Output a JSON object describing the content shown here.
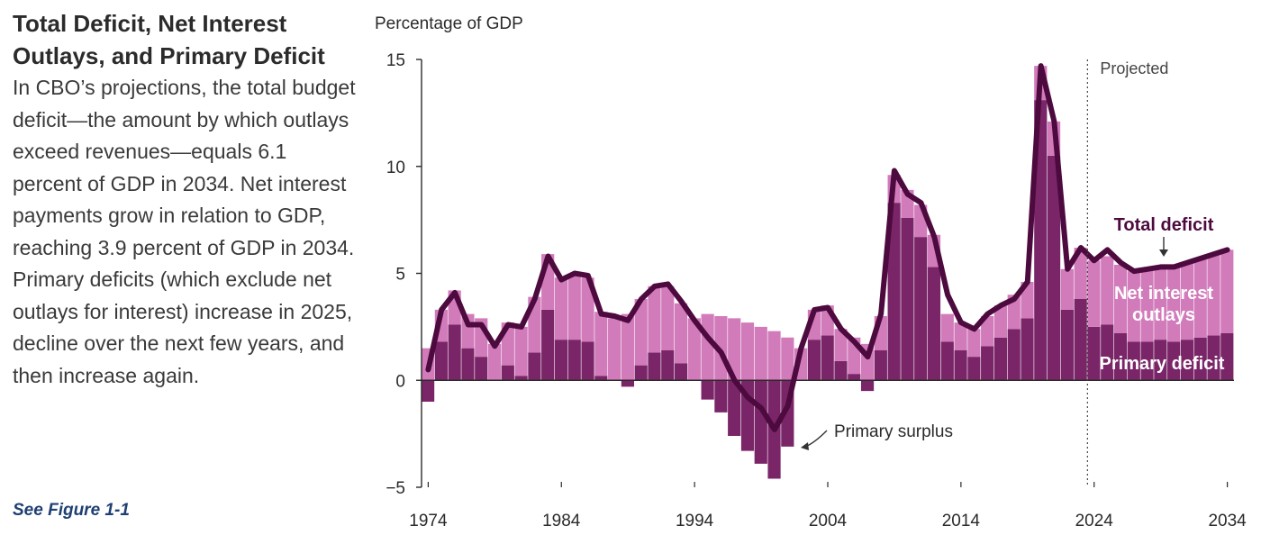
{
  "side": {
    "title": "Total Deficit, Net Interest Outlays, and Primary Deficit",
    "body": "In CBO’s projections, the total budget deficit—the amount by which outlays exceed revenues—equals 6.1 percent of GDP in 2034. Net interest payments grow in relation to GDP, reaching 3.9 percent of GDP in 2034. Primary deficits (which exclude net outlays for interest) increase in 2025, decline over the next few years, and then increase again.",
    "link": "See Figure 1-1"
  },
  "colors": {
    "primary": "#7a2568",
    "net_interest": "#d27bbb",
    "total_line": "#4d0a3e",
    "axis": "#2b2b2b",
    "link": "#1f3f72"
  },
  "chart_data": {
    "type": "bar",
    "ylabel": "Percentage of GDP",
    "ylim": [
      -5,
      15
    ],
    "yticks": [
      -5,
      0,
      5,
      10,
      15
    ],
    "xticks": [
      1974,
      1984,
      1994,
      2004,
      2014,
      2024,
      2034
    ],
    "projection_start": 2024,
    "x": [
      1974,
      1975,
      1976,
      1977,
      1978,
      1979,
      1980,
      1981,
      1982,
      1983,
      1984,
      1985,
      1986,
      1987,
      1988,
      1989,
      1990,
      1991,
      1992,
      1993,
      1994,
      1995,
      1996,
      1997,
      1998,
      1999,
      2000,
      2001,
      2002,
      2003,
      2004,
      2005,
      2006,
      2007,
      2008,
      2009,
      2010,
      2011,
      2012,
      2013,
      2014,
      2015,
      2016,
      2017,
      2018,
      2019,
      2020,
      2021,
      2022,
      2023,
      2024,
      2025,
      2026,
      2027,
      2028,
      2029,
      2030,
      2031,
      2032,
      2033,
      2034
    ],
    "series": [
      {
        "name": "Primary deficit",
        "values": [
          -1.0,
          1.8,
          2.6,
          1.5,
          1.1,
          0.0,
          0.7,
          0.2,
          1.3,
          3.3,
          1.9,
          1.9,
          1.8,
          0.2,
          0.0,
          -0.3,
          0.7,
          1.3,
          1.4,
          0.8,
          0.0,
          -0.9,
          -1.5,
          -2.6,
          -3.3,
          -3.9,
          -4.6,
          -3.1,
          0.0,
          1.9,
          2.1,
          0.9,
          0.3,
          -0.5,
          1.4,
          8.3,
          7.6,
          6.7,
          5.3,
          1.8,
          1.4,
          1.1,
          1.6,
          2.0,
          2.4,
          2.9,
          13.1,
          10.5,
          3.3,
          3.8,
          2.5,
          2.6,
          2.2,
          1.8,
          1.8,
          1.9,
          1.8,
          1.9,
          2.0,
          2.1,
          2.2
        ]
      },
      {
        "name": "Net interest outlays",
        "values": [
          1.5,
          1.5,
          1.6,
          1.6,
          1.8,
          1.7,
          2.0,
          2.3,
          2.6,
          2.6,
          2.9,
          3.1,
          3.0,
          3.0,
          2.9,
          3.1,
          3.1,
          3.1,
          3.0,
          2.8,
          2.9,
          3.1,
          3.0,
          2.9,
          2.7,
          2.5,
          2.3,
          2.0,
          1.5,
          1.4,
          1.4,
          1.5,
          1.7,
          1.7,
          1.6,
          1.3,
          1.3,
          1.5,
          1.5,
          1.3,
          1.3,
          1.3,
          1.4,
          1.5,
          1.6,
          1.7,
          1.6,
          1.6,
          1.9,
          2.4,
          3.1,
          3.2,
          3.2,
          3.3,
          3.4,
          3.4,
          3.5,
          3.6,
          3.7,
          3.8,
          3.9
        ]
      },
      {
        "name": "Total deficit",
        "values": [
          0.5,
          3.3,
          4.1,
          2.6,
          2.6,
          1.6,
          2.6,
          2.5,
          3.8,
          5.8,
          4.7,
          5.0,
          4.9,
          3.1,
          3.0,
          2.8,
          3.8,
          4.4,
          4.5,
          3.7,
          2.8,
          2.0,
          1.3,
          0.0,
          -0.8,
          -1.3,
          -2.3,
          -1.2,
          1.5,
          3.3,
          3.4,
          2.4,
          1.8,
          1.1,
          3.1,
          9.8,
          8.7,
          8.3,
          6.7,
          4.0,
          2.7,
          2.4,
          3.1,
          3.5,
          3.8,
          4.6,
          14.7,
          12.1,
          5.2,
          6.2,
          5.6,
          6.1,
          5.5,
          5.1,
          5.2,
          5.3,
          5.3,
          5.5,
          5.7,
          5.9,
          6.1
        ]
      }
    ],
    "annotations": {
      "projected": "Projected",
      "total_deficit": "Total deficit",
      "net_interest": "Net interest outlays",
      "primary_deficit": "Primary deficit",
      "primary_surplus": "Primary surplus"
    }
  }
}
